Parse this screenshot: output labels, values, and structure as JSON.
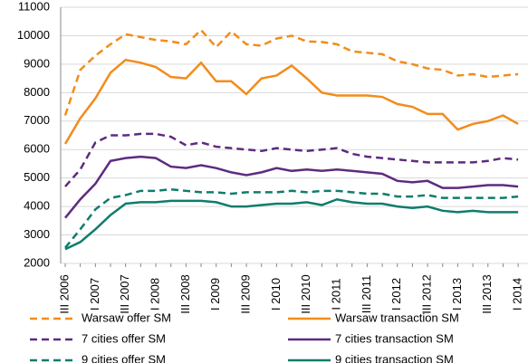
{
  "chart_data": {
    "type": "line",
    "categories": [
      "III 2006",
      null,
      "I 2007",
      null,
      "III 2007",
      null,
      "I 2008",
      null,
      "III 2008",
      null,
      "I 2009",
      null,
      "III 2009",
      null,
      "I 2010",
      null,
      "III 2010",
      null,
      "I 2011",
      null,
      "III 2011",
      null,
      "I 2012",
      null,
      "III 2012",
      null,
      "I 2013",
      null,
      "III 2013",
      null,
      "I 2014"
    ],
    "ylim": [
      2000,
      11000
    ],
    "yticks": [
      2000,
      3000,
      4000,
      5000,
      6000,
      7000,
      8000,
      9000,
      10000,
      11000
    ],
    "grid": true,
    "series": [
      {
        "name": "Warsaw offer SM",
        "color": "#f28c1c",
        "dashed": true,
        "values": [
          7200,
          8800,
          9300,
          9700,
          10050,
          9950,
          9850,
          9800,
          9700,
          10200,
          9600,
          10150,
          9700,
          9650,
          9900,
          10000,
          9800,
          9780,
          9700,
          9450,
          9400,
          9350,
          9100,
          9000,
          8850,
          8800,
          8600,
          8650,
          8550,
          8600,
          8650
        ]
      },
      {
        "name": "Warsaw transaction SM",
        "color": "#f28c1c",
        "dashed": false,
        "values": [
          6200,
          7100,
          7800,
          8700,
          9150,
          9050,
          8900,
          8550,
          8500,
          9050,
          8400,
          8400,
          7950,
          8500,
          8600,
          8950,
          8500,
          8000,
          7900,
          7900,
          7900,
          7850,
          7600,
          7500,
          7250,
          7250,
          6700,
          6900,
          7000,
          7200,
          6900
        ]
      },
      {
        "name": "7 cities offer SM",
        "color": "#5e2b80",
        "dashed": true,
        "values": [
          4700,
          5300,
          6250,
          6500,
          6500,
          6550,
          6550,
          6450,
          6150,
          6250,
          6100,
          6050,
          6000,
          5950,
          6050,
          6000,
          5950,
          6000,
          6050,
          5850,
          5750,
          5700,
          5650,
          5600,
          5550,
          5550,
          5550,
          5550,
          5600,
          5700,
          5650
        ]
      },
      {
        "name": "7 cities transaction SM",
        "color": "#5e2b80",
        "dashed": false,
        "values": [
          3600,
          4250,
          4800,
          5600,
          5700,
          5750,
          5700,
          5400,
          5350,
          5450,
          5350,
          5200,
          5100,
          5200,
          5350,
          5250,
          5300,
          5250,
          5300,
          5250,
          5200,
          5150,
          4900,
          4850,
          4900,
          4650,
          4650,
          4700,
          4750,
          4750,
          4700
        ]
      },
      {
        "name": "9 cities offer SM",
        "color": "#0e7d6b",
        "dashed": true,
        "values": [
          2550,
          3200,
          3900,
          4300,
          4400,
          4550,
          4550,
          4600,
          4550,
          4500,
          4500,
          4450,
          4500,
          4500,
          4500,
          4550,
          4500,
          4550,
          4550,
          4500,
          4450,
          4450,
          4350,
          4350,
          4400,
          4300,
          4300,
          4300,
          4300,
          4300,
          4350
        ]
      },
      {
        "name": "9 cities transaction SM",
        "color": "#0e7d6b",
        "dashed": false,
        "values": [
          2500,
          2750,
          3200,
          3700,
          4100,
          4150,
          4150,
          4200,
          4200,
          4200,
          4150,
          4000,
          4000,
          4050,
          4100,
          4100,
          4150,
          4050,
          4250,
          4150,
          4100,
          4100,
          4000,
          3950,
          4000,
          3850,
          3800,
          3850,
          3800,
          3800,
          3800
        ]
      }
    ]
  }
}
